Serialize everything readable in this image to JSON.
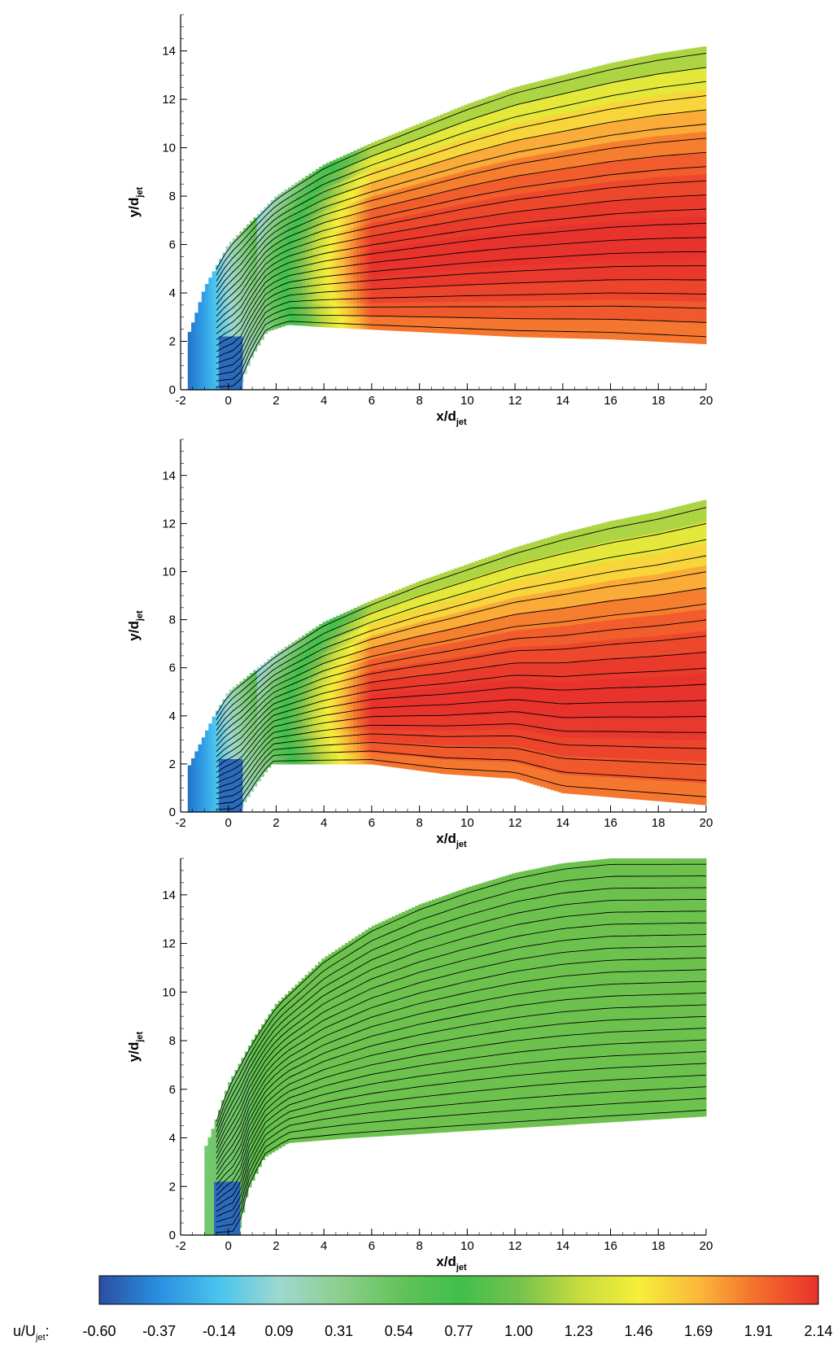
{
  "chart_data": [
    {
      "type": "contour",
      "panel": "top",
      "xlabel": "x/d",
      "xlabel_sub": "jet",
      "ylabel": "y/d",
      "ylabel_sub": "jet",
      "xlim": [
        -2,
        20
      ],
      "ylim": [
        0,
        15.5
      ],
      "xticks": [
        -2,
        0,
        2,
        4,
        6,
        8,
        10,
        12,
        14,
        16,
        18,
        20
      ],
      "yticks": [
        0,
        2,
        4,
        6,
        8,
        10,
        12,
        14
      ],
      "jet_exit": [
        -0.4,
        0.6
      ],
      "region": {
        "upper": [
          [
            -1.7,
            2.2
          ],
          [
            -1.4,
            3.0
          ],
          [
            -1,
            4.2
          ],
          [
            0,
            6.0
          ],
          [
            2,
            8.0
          ],
          [
            4,
            9.3
          ],
          [
            6,
            10.2
          ],
          [
            8,
            11.0
          ],
          [
            10,
            11.8
          ],
          [
            12,
            12.5
          ],
          [
            14,
            13.0
          ],
          [
            16,
            13.5
          ],
          [
            18,
            13.9
          ],
          [
            20,
            14.2
          ]
        ],
        "lower": [
          [
            0.4,
            0
          ],
          [
            1,
            1.4
          ],
          [
            1.6,
            2.4
          ],
          [
            2.5,
            2.7
          ],
          [
            4,
            2.6
          ],
          [
            8,
            2.4
          ],
          [
            12,
            2.2
          ],
          [
            16,
            2.1
          ],
          [
            20,
            1.9
          ]
        ]
      },
      "core_magnitude": 2.14,
      "streamline_count": 21
    },
    {
      "type": "contour",
      "panel": "middle",
      "xlabel": "x/d",
      "xlabel_sub": "jet",
      "ylabel": "y/d",
      "ylabel_sub": "jet",
      "xlim": [
        -2,
        20
      ],
      "ylim": [
        0,
        15.5
      ],
      "xticks": [
        -2,
        0,
        2,
        4,
        6,
        8,
        10,
        12,
        14,
        16,
        18,
        20
      ],
      "yticks": [
        0,
        2,
        4,
        6,
        8,
        10,
        12,
        14
      ],
      "jet_exit": [
        -0.4,
        0.6
      ],
      "region": {
        "upper": [
          [
            -1.7,
            1.8
          ],
          [
            -1.2,
            2.8
          ],
          [
            -0.6,
            4.0
          ],
          [
            0,
            5.0
          ],
          [
            2,
            6.6
          ],
          [
            4,
            7.9
          ],
          [
            6,
            8.8
          ],
          [
            8,
            9.6
          ],
          [
            10,
            10.3
          ],
          [
            12,
            11.0
          ],
          [
            14,
            11.6
          ],
          [
            16,
            12.1
          ],
          [
            18,
            12.5
          ],
          [
            20,
            13.0
          ]
        ],
        "lower": [
          [
            0.4,
            0
          ],
          [
            1.2,
            1.2
          ],
          [
            1.8,
            2.0
          ],
          [
            3,
            2.0
          ],
          [
            6,
            2.0
          ],
          [
            9,
            1.6
          ],
          [
            12,
            1.4
          ],
          [
            14,
            0.8
          ],
          [
            20,
            0.3
          ]
        ]
      },
      "core_magnitude": 2.14,
      "streamline_count": 19
    },
    {
      "type": "contour",
      "panel": "bottom",
      "xlabel": "x/d",
      "xlabel_sub": "jet",
      "ylabel": "y/d",
      "ylabel_sub": "jet",
      "xlim": [
        -2,
        20
      ],
      "ylim": [
        0,
        15.5
      ],
      "xticks": [
        -2,
        0,
        2,
        4,
        6,
        8,
        10,
        12,
        14,
        16,
        18,
        20
      ],
      "yticks": [
        0,
        2,
        4,
        6,
        8,
        10,
        12,
        14
      ],
      "jet_exit": [
        -0.6,
        0.5
      ],
      "region": {
        "upper": [
          [
            -1.0,
            3.5
          ],
          [
            -0.6,
            4.5
          ],
          [
            0,
            6.2
          ],
          [
            1,
            8.0
          ],
          [
            2,
            9.5
          ],
          [
            4,
            11.4
          ],
          [
            6,
            12.7
          ],
          [
            8,
            13.6
          ],
          [
            10,
            14.3
          ],
          [
            12,
            14.9
          ],
          [
            14,
            15.3
          ],
          [
            16,
            15.5
          ],
          [
            20,
            15.5
          ]
        ],
        "lower": [
          [
            0.4,
            0
          ],
          [
            0.8,
            1.8
          ],
          [
            1.5,
            3.2
          ],
          [
            2.5,
            3.8
          ],
          [
            5,
            4.0
          ],
          [
            10,
            4.3
          ],
          [
            15,
            4.6
          ],
          [
            20,
            4.9
          ]
        ]
      },
      "core_magnitude": 1.0,
      "streamline_count": 22
    }
  ],
  "colorbar": {
    "label": "u/U",
    "label_sub": "jet",
    "label_suffix": ":",
    "ticks": [
      "-0.60",
      "-0.37",
      "-0.14",
      "0.09",
      "0.31",
      "0.54",
      "0.77",
      "1.00",
      "1.23",
      "1.46",
      "1.69",
      "1.91",
      "2.14"
    ],
    "min": -0.6,
    "max": 2.14,
    "colors": [
      "#2b4ea0",
      "#2a8fe0",
      "#49c4ee",
      "#9ed8d0",
      "#8dcf8e",
      "#64c35a",
      "#3fbf4b",
      "#74c24e",
      "#c6dc3e",
      "#f5ef3a",
      "#fbb83a",
      "#f46c2c",
      "#e8312c"
    ]
  }
}
